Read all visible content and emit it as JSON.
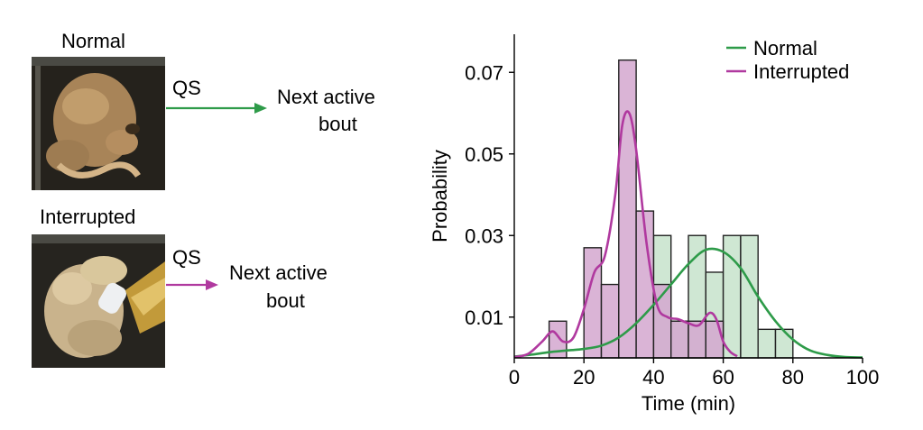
{
  "diagram": {
    "normal": {
      "title": "Normal",
      "arrow_label": "QS",
      "target": [
        "Next active",
        "bout"
      ],
      "arrow_color": "#2e9b49"
    },
    "interrupted": {
      "title": "Interrupted",
      "arrow_label": "QS",
      "target": [
        "Next active",
        "bout"
      ],
      "arrow_color": "#b0399f"
    }
  },
  "chart_data": {
    "type": "histogram",
    "xlabel": "Time (min)",
    "ylabel": "Probability",
    "xlim": [
      0,
      100
    ],
    "ylim": [
      0,
      0.08
    ],
    "xticks": [
      0,
      20,
      40,
      60,
      80,
      100
    ],
    "yticks": [
      0.01,
      0.03,
      0.05,
      0.07
    ],
    "ytick_labels": [
      "0.01",
      "0.03",
      "0.05",
      "0.07"
    ],
    "bin_width": 5,
    "legend_position": "top-right",
    "series": [
      {
        "name": "Normal",
        "color": "#2e9b49",
        "fill": "#cfe7d3",
        "bins": [
          {
            "x0": 40,
            "x1": 45,
            "y": 0.03
          },
          {
            "x0": 45,
            "x1": 50,
            "y": 0.009
          },
          {
            "x0": 50,
            "x1": 55,
            "y": 0.03
          },
          {
            "x0": 55,
            "x1": 60,
            "y": 0.021
          },
          {
            "x0": 60,
            "x1": 65,
            "y": 0.03
          },
          {
            "x0": 65,
            "x1": 70,
            "y": 0.03
          },
          {
            "x0": 70,
            "x1": 75,
            "y": 0.007
          },
          {
            "x0": 75,
            "x1": 80,
            "y": 0.007
          }
        ],
        "kde": {
          "x": [
            0,
            5,
            10,
            15,
            20,
            25,
            30,
            35,
            40,
            45,
            50,
            55,
            60,
            65,
            70,
            75,
            80,
            85,
            90,
            95,
            100
          ],
          "y": [
            0.0003,
            0.0008,
            0.0014,
            0.0018,
            0.0022,
            0.003,
            0.005,
            0.0085,
            0.013,
            0.018,
            0.023,
            0.0265,
            0.026,
            0.022,
            0.015,
            0.009,
            0.0045,
            0.0018,
            0.0007,
            0.0002,
            0.0001
          ]
        }
      },
      {
        "name": "Interrupted",
        "color": "#b0399f",
        "fill": "#d4a7cf",
        "bins": [
          {
            "x0": 10,
            "x1": 15,
            "y": 0.009
          },
          {
            "x0": 20,
            "x1": 25,
            "y": 0.027
          },
          {
            "x0": 25,
            "x1": 30,
            "y": 0.018
          },
          {
            "x0": 30,
            "x1": 35,
            "y": 0.073
          },
          {
            "x0": 35,
            "x1": 40,
            "y": 0.036
          },
          {
            "x0": 40,
            "x1": 45,
            "y": 0.018
          },
          {
            "x0": 45,
            "x1": 50,
            "y": 0.009
          },
          {
            "x0": 50,
            "x1": 55,
            "y": 0.009
          },
          {
            "x0": 55,
            "x1": 60,
            "y": 0.009
          }
        ],
        "kde": {
          "x": [
            0,
            4,
            8,
            11,
            14,
            17,
            20,
            23,
            26,
            29,
            31,
            33,
            35,
            38,
            41,
            44,
            47,
            50,
            53,
            56,
            58,
            60,
            62,
            64
          ],
          "y": [
            0.0002,
            0.001,
            0.004,
            0.0065,
            0.004,
            0.005,
            0.012,
            0.021,
            0.025,
            0.04,
            0.057,
            0.06,
            0.051,
            0.028,
            0.013,
            0.01,
            0.0095,
            0.0085,
            0.008,
            0.011,
            0.0095,
            0.004,
            0.0015,
            0.0004
          ]
        }
      }
    ]
  }
}
